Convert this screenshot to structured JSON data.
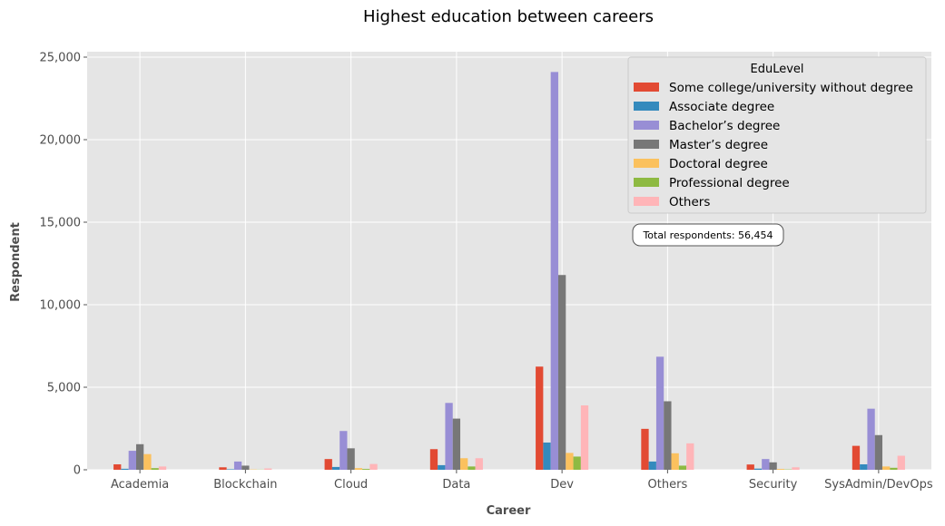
{
  "chart_data": {
    "type": "bar",
    "title": "Highest education between careers",
    "xlabel": "Career",
    "ylabel": "Respondent",
    "ylim": [
      0,
      25000
    ],
    "yticks": [
      0,
      5000,
      10000,
      15000,
      20000,
      25000
    ],
    "grid": true,
    "legend_title": "EduLevel",
    "legend_position": "top-right",
    "categories": [
      "Academia",
      "Blockchain",
      "Cloud",
      "Data",
      "Dev",
      "Others",
      "Security",
      "SysAdmin/DevOps"
    ],
    "series": [
      {
        "name": "Some college/university without degree",
        "color": "#E24A33",
        "values": [
          330,
          150,
          650,
          1250,
          6250,
          2480,
          320,
          1450
        ]
      },
      {
        "name": "Associate degree",
        "color": "#348ABD",
        "values": [
          60,
          30,
          170,
          280,
          1650,
          500,
          70,
          330
        ]
      },
      {
        "name": "Bachelor’s degree",
        "color": "#988ED5",
        "values": [
          1150,
          500,
          2350,
          4050,
          24100,
          6850,
          650,
          3700
        ]
      },
      {
        "name": "Master’s degree",
        "color": "#777777",
        "values": [
          1550,
          250,
          1300,
          3100,
          11800,
          4150,
          450,
          2100
        ]
      },
      {
        "name": "Doctoral degree",
        "color": "#FBC15E",
        "values": [
          950,
          20,
          100,
          700,
          1020,
          1000,
          50,
          200
        ]
      },
      {
        "name": "Professional degree",
        "color": "#8EBA42",
        "values": [
          100,
          10,
          50,
          200,
          800,
          250,
          20,
          120
        ]
      },
      {
        "name": "Others",
        "color": "#FFB5B8",
        "values": [
          200,
          80,
          350,
          700,
          3900,
          1600,
          150,
          850
        ]
      }
    ],
    "annotation": "Total respondents: 56,454"
  }
}
